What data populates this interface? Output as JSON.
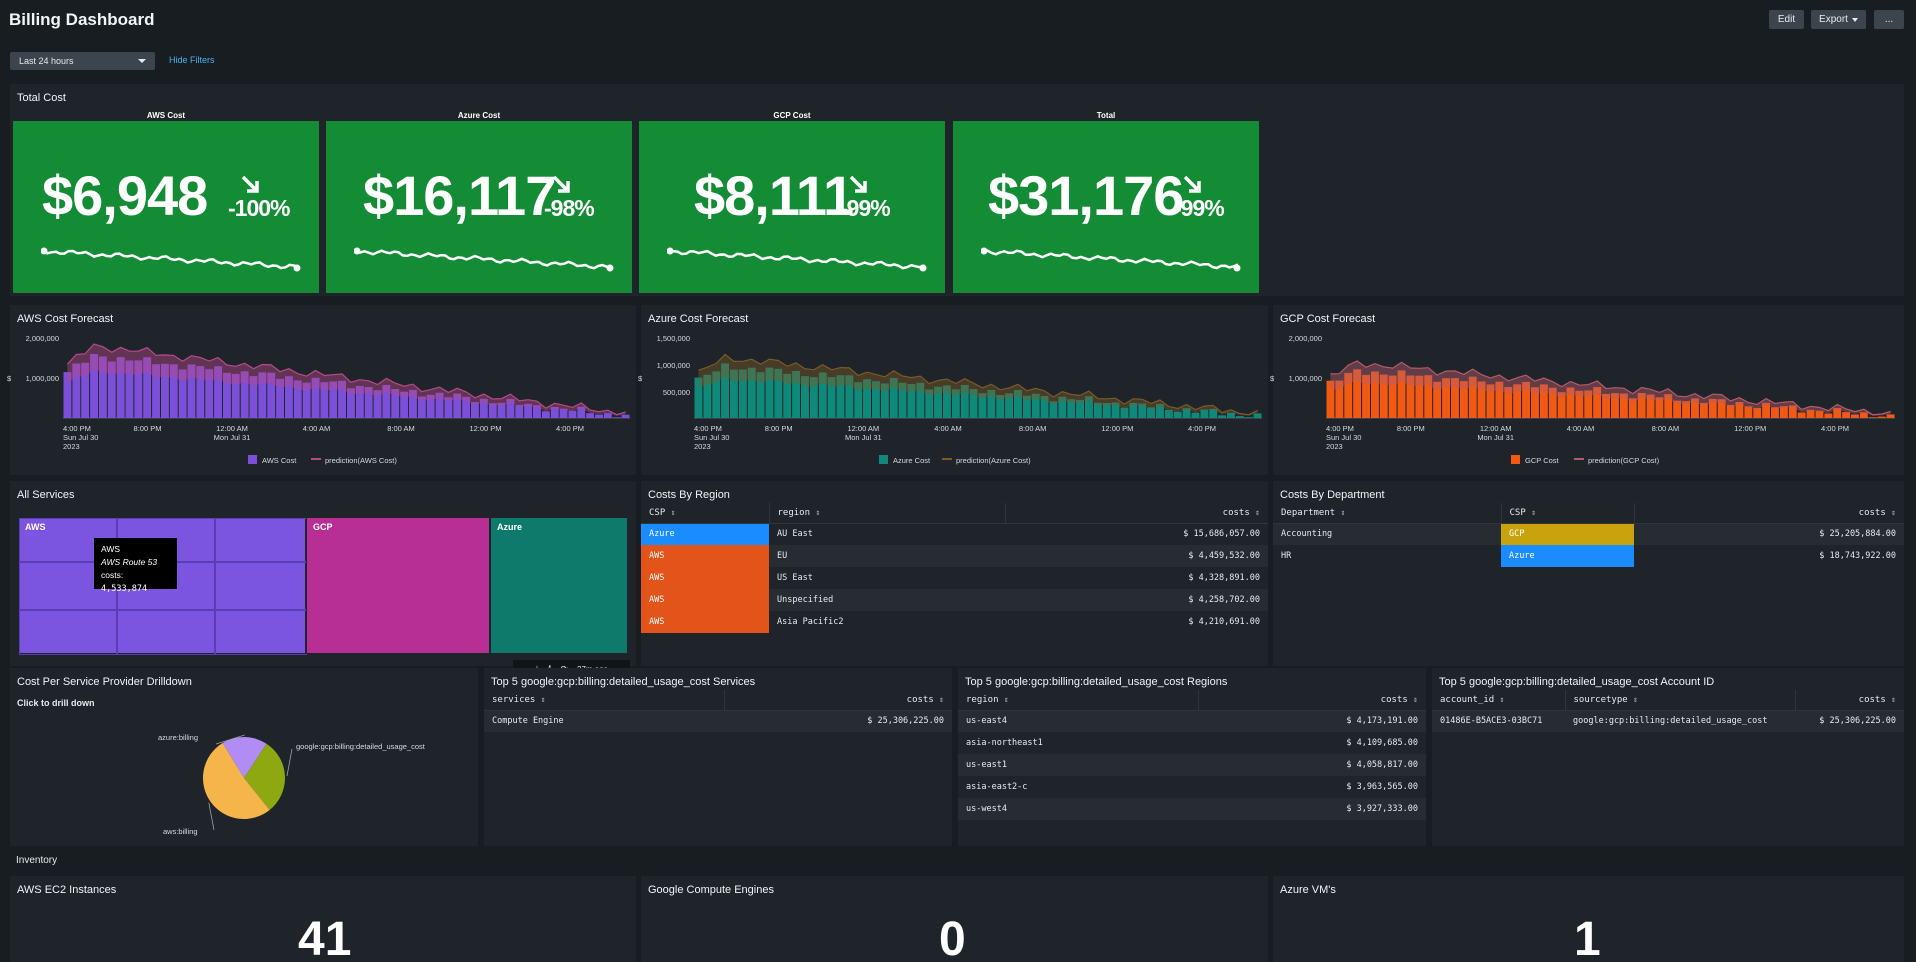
{
  "header": {
    "title": "Billing Dashboard",
    "edit_label": "Edit",
    "export_label": "Export",
    "more_label": "..."
  },
  "filters": {
    "time_range": "Last 24 hours",
    "hide_filters_label": "Hide Filters"
  },
  "total_cost": {
    "title": "Total Cost",
    "cards": [
      {
        "label": "AWS Cost",
        "value": "$6,948",
        "delta": "-100%"
      },
      {
        "label": "Azure Cost",
        "value": "$16,117",
        "delta": "-98%"
      },
      {
        "label": "GCP Cost",
        "value": "$8,111",
        "delta": "-99%"
      },
      {
        "label": "Total",
        "value": "$31,176",
        "delta": "-99%"
      }
    ]
  },
  "forecasts": [
    {
      "title": "AWS Cost Forecast",
      "yticks": [
        "2,000,000",
        "1,000,000"
      ],
      "ylabel": "$",
      "xticks": [
        "4:00 PM",
        "8:00 PM",
        "12:00 AM",
        "4:00 AM",
        "8:00 AM",
        "12:00 PM",
        "4:00 PM"
      ],
      "date1": "Sun Jul 30",
      "year": "2023",
      "date2": "Mon Jul 31",
      "legend_series": "AWS Cost",
      "legend_prediction": "prediction(AWS Cost)",
      "bar_color": "#7c4fd8",
      "line_color": "#b54a8a"
    },
    {
      "title": "Azure Cost Forecast",
      "yticks": [
        "1,500,000",
        "1,000,000",
        "500,000"
      ],
      "ylabel": "$",
      "xticks": [
        "4:00 PM",
        "8:00 PM",
        "12:00 AM",
        "4:00 AM",
        "8:00 AM",
        "12:00 PM",
        "4:00 PM"
      ],
      "date1": "Sun Jul 30",
      "year": "2023",
      "date2": "Mon Jul 31",
      "legend_series": "Azure Cost",
      "legend_prediction": "prediction(Azure Cost)",
      "bar_color": "#0f8a7a",
      "line_color": "#7a5a25"
    },
    {
      "title": "GCP Cost Forecast",
      "yticks": [
        "2,000,000",
        "1,000,000"
      ],
      "ylabel": "$",
      "xticks": [
        "4:00 PM",
        "8:00 PM",
        "12:00 AM",
        "4:00 AM",
        "8:00 AM",
        "12:00 PM",
        "4:00 PM"
      ],
      "date1": "Sun Jul 30",
      "year": "2023",
      "date2": "Mon Jul 31",
      "legend_series": "GCP Cost",
      "legend_prediction": "prediction(GCP Cost)",
      "bar_color": "#f25a13",
      "line_color": "#b55a6a"
    }
  ],
  "all_services": {
    "title": "All Services",
    "labels": [
      "AWS",
      "GCP",
      "Azure"
    ],
    "colors": {
      "aws": "#7b55e0",
      "gcp": "#b72f94",
      "azure": "#0d7a6c"
    },
    "tooltip": {
      "group": "AWS",
      "name": "AWS Route 53",
      "costs_label": "costs:",
      "costs_value": "4,533,874"
    },
    "toolbar_time": "37m ago"
  },
  "costs_by_region": {
    "title": "Costs By Region",
    "columns": [
      "CSP",
      "region",
      "costs"
    ],
    "rows": [
      {
        "csp": "Azure",
        "region": "AU East",
        "costs": "$ 15,686,057.00"
      },
      {
        "csp": "AWS",
        "region": "EU",
        "costs": "$ 4,459,532.00"
      },
      {
        "csp": "AWS",
        "region": "US East",
        "costs": "$ 4,328,891.00"
      },
      {
        "csp": "AWS",
        "region": "Unspecified",
        "costs": "$ 4,258,702.00"
      },
      {
        "csp": "AWS",
        "region": "Asia Pacific2",
        "costs": "$ 4,210,691.00"
      }
    ]
  },
  "costs_by_department": {
    "title": "Costs By Department",
    "columns": [
      "Department",
      "CSP",
      "costs"
    ],
    "rows": [
      {
        "department": "Accounting",
        "csp": "GCP",
        "costs": "$ 25,205,884.00"
      },
      {
        "department": "HR",
        "csp": "Azure",
        "costs": "$ 18,743,922.00"
      }
    ]
  },
  "drilldown": {
    "title": "Cost Per Service Provider Drilldown",
    "subtitle": "Click to drill down",
    "slices": [
      {
        "label": "azure:billing",
        "value": 18,
        "color": "#b18cf5"
      },
      {
        "label": "google:gcp:billing:detailed_usage_cost",
        "value": 30,
        "color": "#8ea812"
      },
      {
        "label": "aws:billing",
        "value": 52,
        "color": "#f5b54a"
      }
    ]
  },
  "top_services": {
    "title": "Top 5 google:gcp:billing:detailed_usage_cost Services",
    "columns": [
      "services",
      "costs"
    ],
    "rows": [
      {
        "services": "Compute Engine",
        "costs": "$ 25,306,225.00"
      }
    ]
  },
  "top_regions": {
    "title": "Top 5 google:gcp:billing:detailed_usage_cost Regions",
    "columns": [
      "region",
      "costs"
    ],
    "rows": [
      {
        "region": "us-east4",
        "costs": "$ 4,173,191.00"
      },
      {
        "region": "asia-northeast1",
        "costs": "$ 4,109,685.00"
      },
      {
        "region": "us-east1",
        "costs": "$ 4,058,817.00"
      },
      {
        "region": "asia-east2-c",
        "costs": "$ 3,963,565.00"
      },
      {
        "region": "us-west4",
        "costs": "$ 3,927,333.00"
      }
    ]
  },
  "top_accounts": {
    "title": "Top 5 google:gcp:billing:detailed_usage_cost Account ID",
    "columns": [
      "account_id",
      "sourcetype",
      "costs"
    ],
    "rows": [
      {
        "account_id": "01486E-B5ACE3-03BC71",
        "sourcetype": "google:gcp:billing:detailed_usage_cost",
        "costs": "$ 25,306,225.00"
      }
    ]
  },
  "inventory": {
    "title": "Inventory",
    "panels": [
      {
        "title": "AWS EC2 Instances",
        "value": "41"
      },
      {
        "title": "Google Compute Engines",
        "value": "0"
      },
      {
        "title": "Azure VM's",
        "value": "1"
      }
    ]
  },
  "colors": {
    "background": "#171d21",
    "panel": "#1e2429",
    "green_card": "#138c35",
    "azure_cell": "#1a8cff",
    "aws_cell": "#e25419",
    "gcp_cell": "#c9a30e",
    "link": "#4ab4f0"
  }
}
